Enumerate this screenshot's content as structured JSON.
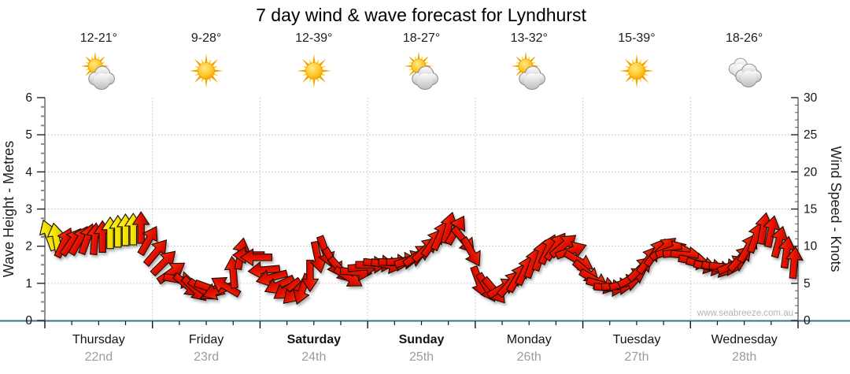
{
  "title": "7 day wind & wave forecast for Lyndhurst",
  "watermark": "www.seabreeze.com.au",
  "days": [
    {
      "name": "Thursday",
      "date": "22nd",
      "temp": "12-21°",
      "icon": "partly-cloudy",
      "bold": false
    },
    {
      "name": "Friday",
      "date": "23rd",
      "temp": "9-28°",
      "icon": "sunny",
      "bold": false
    },
    {
      "name": "Saturday",
      "date": "24th",
      "temp": "12-39°",
      "icon": "sunny",
      "bold": true
    },
    {
      "name": "Sunday",
      "date": "25th",
      "temp": "18-27°",
      "icon": "partly-cloudy",
      "bold": true
    },
    {
      "name": "Monday",
      "date": "26th",
      "temp": "13-32°",
      "icon": "partly-cloudy",
      "bold": false
    },
    {
      "name": "Tuesday",
      "date": "27th",
      "temp": "15-39°",
      "icon": "sunny",
      "bold": false
    },
    {
      "name": "Wednesday",
      "date": "28th",
      "temp": "18-26°",
      "icon": "cloudy",
      "bold": false
    }
  ],
  "chart_data": {
    "type": "scatter",
    "marker": "wind-direction-arrow",
    "title": "7 day wind & wave forecast for Lyndhurst",
    "y_left": {
      "label": "Wave Height - Metres",
      "min": 0,
      "max": 6,
      "major_tick": 1,
      "minor_tick": 0.25
    },
    "y_right": {
      "label": "Wind Speed - Knots",
      "min": 0,
      "max": 30,
      "major_tick": 5,
      "minor_tick": 1
    },
    "x_categories": [
      "Thursday 22nd",
      "Friday 23rd",
      "Saturday 24th",
      "Sunday 25th",
      "Monday 26th",
      "Tuesday 27th",
      "Wednesday 28th"
    ],
    "grid": {
      "horizontal_dotted_at_metres": [
        1,
        2,
        3,
        4,
        5
      ],
      "vertical_dotted_at_day_boundaries": true
    },
    "points_per_day": 14,
    "point_format": [
      "wind_speed_knots",
      "direction_deg_clockwise_from_up",
      "color_code r=red y=yellow"
    ],
    "series": [
      {
        "name": "Wind speed & direction",
        "points": [
          [
            11.5,
            -20,
            "y"
          ],
          [
            11,
            -10,
            "y"
          ],
          [
            10.5,
            25,
            "r"
          ],
          [
            10.6,
            35,
            "r"
          ],
          [
            10.8,
            30,
            "r"
          ],
          [
            11,
            20,
            "r"
          ],
          [
            11,
            5,
            "r"
          ],
          [
            11.3,
            0,
            "r"
          ],
          [
            11.8,
            0,
            "y"
          ],
          [
            12,
            0,
            "y"
          ],
          [
            12.2,
            0,
            "y"
          ],
          [
            12.3,
            0,
            "y"
          ],
          [
            12.5,
            0,
            "r"
          ],
          [
            10.8,
            30,
            "r"
          ],
          [
            9.2,
            40,
            "r"
          ],
          [
            7.8,
            45,
            "r"
          ],
          [
            6.5,
            55,
            "r"
          ],
          [
            5.5,
            100,
            "r"
          ],
          [
            4.7,
            130,
            "r"
          ],
          [
            4.2,
            135,
            "r"
          ],
          [
            4.1,
            125,
            "r"
          ],
          [
            4.3,
            110,
            "r"
          ],
          [
            4,
            250,
            "r"
          ],
          [
            4.6,
            300,
            "r"
          ],
          [
            6.5,
            355,
            "r"
          ],
          [
            9,
            10,
            "r"
          ],
          [
            8.8,
            270,
            "r"
          ],
          [
            8.5,
            270,
            "r"
          ],
          [
            6.8,
            265,
            "r"
          ],
          [
            5.8,
            255,
            "r"
          ],
          [
            4.8,
            245,
            "r"
          ],
          [
            4.2,
            235,
            "r"
          ],
          [
            3.8,
            225,
            "r"
          ],
          [
            4.2,
            200,
            "r"
          ],
          [
            6,
            180,
            "r"
          ],
          [
            8.5,
            168,
            "r"
          ],
          [
            9.3,
            160,
            "r"
          ],
          [
            7.8,
            150,
            "r"
          ],
          [
            6.8,
            138,
            "r"
          ],
          [
            5.8,
            122,
            "r"
          ],
          [
            6.5,
            95,
            "r"
          ],
          [
            7.2,
            85,
            "r"
          ],
          [
            7.5,
            90,
            "r"
          ],
          [
            7.7,
            95,
            "r"
          ],
          [
            7.5,
            100,
            "r"
          ],
          [
            7.8,
            92,
            "r"
          ],
          [
            8,
            85,
            "r"
          ],
          [
            8.2,
            70,
            "r"
          ],
          [
            8.8,
            55,
            "r"
          ],
          [
            9.6,
            45,
            "r"
          ],
          [
            10.5,
            35,
            "r"
          ],
          [
            11.5,
            25,
            "r"
          ],
          [
            12.5,
            15,
            "r"
          ],
          [
            12.2,
            30,
            "r"
          ],
          [
            10.8,
            140,
            "r"
          ],
          [
            9.2,
            150,
            "r"
          ],
          [
            5.2,
            160,
            "r"
          ],
          [
            4.4,
            150,
            "r"
          ],
          [
            4,
            140,
            "r"
          ],
          [
            4.4,
            60,
            "r"
          ],
          [
            5,
            40,
            "r"
          ],
          [
            5.8,
            30,
            "r"
          ],
          [
            6.8,
            25,
            "r"
          ],
          [
            7.8,
            20,
            "r"
          ],
          [
            8.8,
            18,
            "r"
          ],
          [
            9.6,
            25,
            "r"
          ],
          [
            10,
            35,
            "r"
          ],
          [
            10.1,
            50,
            "r"
          ],
          [
            9.4,
            70,
            "r"
          ],
          [
            8,
            120,
            "r"
          ],
          [
            6.5,
            130,
            "r"
          ],
          [
            5.5,
            120,
            "r"
          ],
          [
            4.8,
            105,
            "r"
          ],
          [
            4.4,
            95,
            "r"
          ],
          [
            4.6,
            88,
            "r"
          ],
          [
            5,
            75,
            "r"
          ],
          [
            5.8,
            60,
            "r"
          ],
          [
            7,
            45,
            "r"
          ],
          [
            8.2,
            35,
            "r"
          ],
          [
            9.2,
            35,
            "r"
          ],
          [
            9.7,
            50,
            "r"
          ],
          [
            9.5,
            70,
            "r"
          ],
          [
            9.1,
            85,
            "r"
          ],
          [
            8.8,
            95,
            "r"
          ],
          [
            8,
            100,
            "r"
          ],
          [
            7.5,
            105,
            "r"
          ],
          [
            7.2,
            102,
            "r"
          ],
          [
            7,
            106,
            "r"
          ],
          [
            7.2,
            95,
            "r"
          ],
          [
            7.5,
            65,
            "r"
          ],
          [
            8.4,
            42,
            "r"
          ],
          [
            9.8,
            30,
            "r"
          ],
          [
            11.2,
            20,
            "r"
          ],
          [
            12.4,
            10,
            "r"
          ],
          [
            12,
            12,
            "r"
          ],
          [
            10.6,
            15,
            "r"
          ],
          [
            9.2,
            8,
            "r"
          ],
          [
            7.8,
            5,
            "r"
          ]
        ]
      }
    ],
    "colors": {
      "arrow_red": "#e60f00",
      "arrow_yellow": "#f2e300",
      "grid": "#c0c0c0",
      "x_axis_line": "#35708e",
      "tick": "#141414",
      "watermark": "#b4b4b4"
    }
  }
}
